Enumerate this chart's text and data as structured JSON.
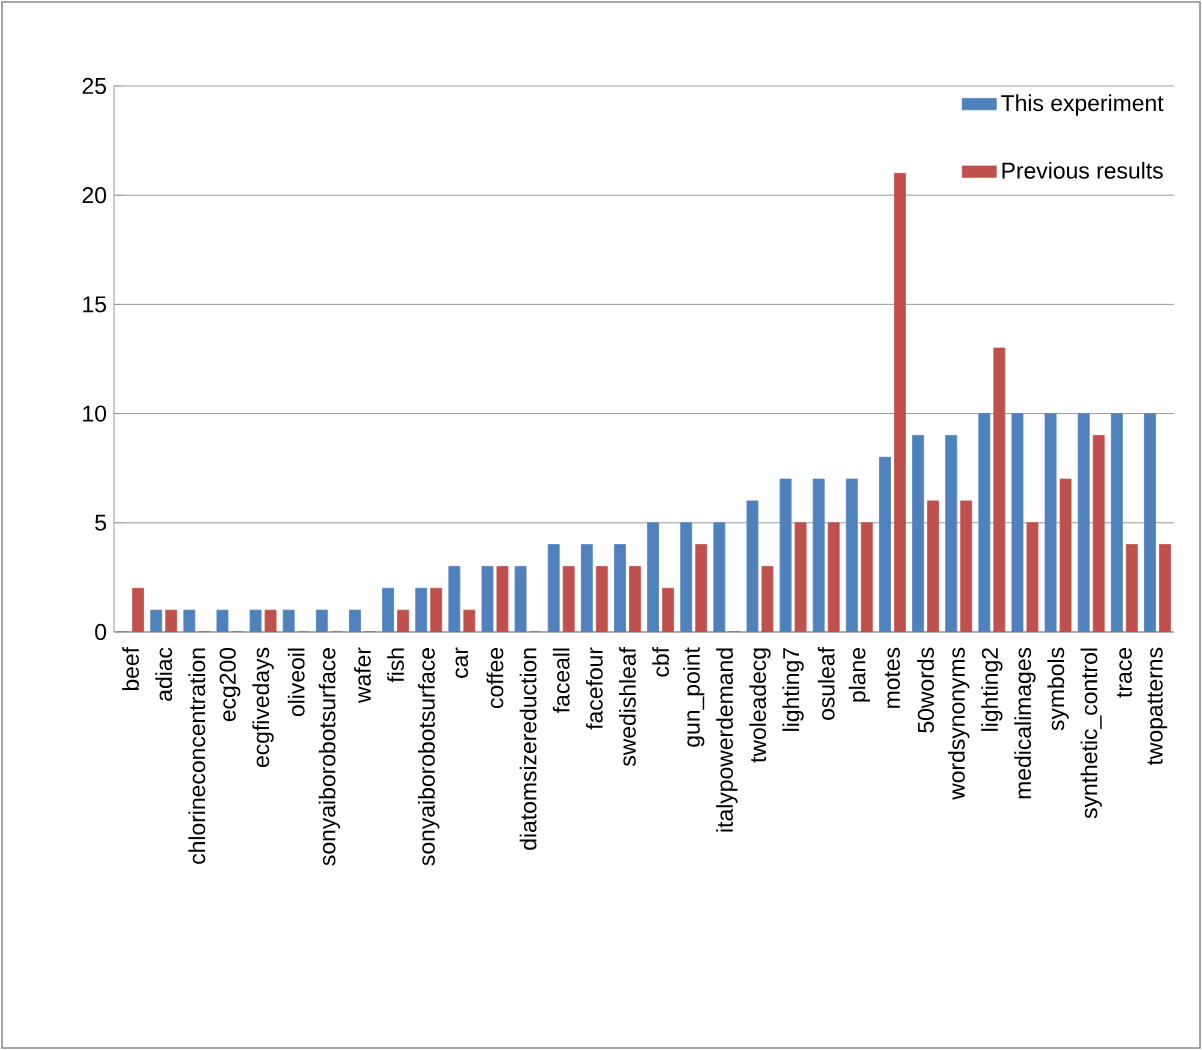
{
  "chart_data": {
    "type": "bar",
    "categories": [
      "beef",
      "adiac",
      "chlorineconcentration",
      "ecg200",
      "ecgfivedays",
      "oliveoil",
      "sonyaiborobotsurface",
      "wafer",
      "fish",
      "sonyaiborobotsurface",
      "car",
      "coffee",
      "diatomsizereduction",
      "faceall",
      "facefour",
      "swedishleaf",
      "cbf",
      "gun_point",
      "italypowerdemand",
      "twoleadecg",
      "lighting7",
      "osuleaf",
      "plane",
      "motes",
      "50words",
      "wordsynonyms",
      "lighting2",
      "medicalimages",
      "symbols",
      "synthetic_control",
      "trace",
      "twopatterns"
    ],
    "series": [
      {
        "name": "This experiment",
        "color": "#4f81bd",
        "values": [
          0,
          1,
          1,
          1,
          1,
          1,
          1,
          1,
          2,
          2,
          3,
          3,
          3,
          4,
          4,
          4,
          5,
          5,
          5,
          6,
          7,
          7,
          7,
          8,
          9,
          9,
          10,
          10,
          10,
          10,
          10,
          10
        ]
      },
      {
        "name": "Previous results",
        "color": "#c0504d",
        "values": [
          2,
          1,
          0,
          0,
          1,
          0,
          0,
          0,
          1,
          2,
          1,
          3,
          0,
          3,
          3,
          3,
          2,
          4,
          0,
          3,
          5,
          5,
          5,
          21,
          6,
          6,
          13,
          5,
          7,
          9,
          4,
          4
        ]
      }
    ],
    "ylim": [
      0,
      25
    ],
    "yticks": [
      0,
      5,
      10,
      15,
      20,
      25
    ],
    "grid": "y",
    "legend": "top right"
  }
}
